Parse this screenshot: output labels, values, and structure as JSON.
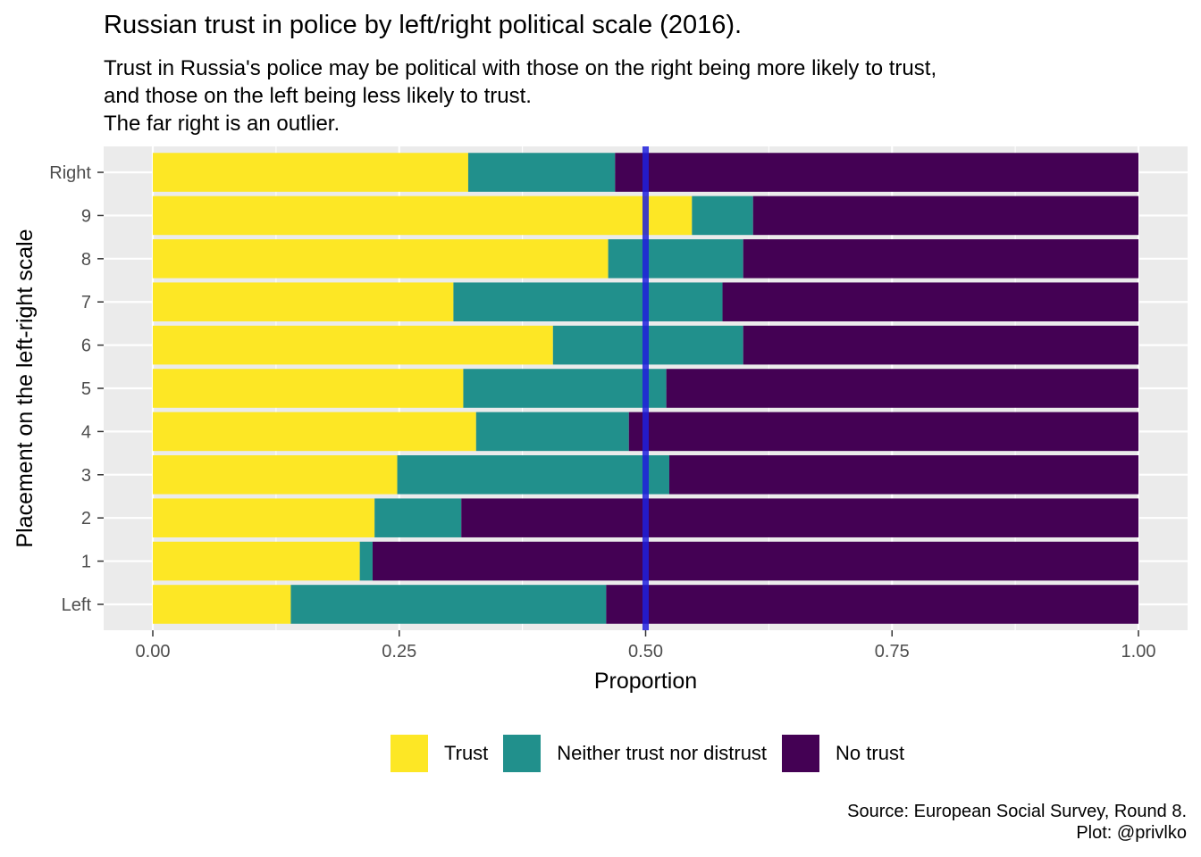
{
  "title": "Russian trust in police by left/right political scale (2016).",
  "subtitle_lines": [
    "Trust in Russia's police may be political with those on the right being more likely to trust,",
    "and those on the left being less likely to trust.",
    "The far right is an outlier."
  ],
  "caption_lines": [
    "Source: European Social Survey, Round 8.",
    "Plot: @privlko"
  ],
  "colors": {
    "trust": "#FDE725",
    "neither": "#21908C",
    "no_trust": "#440154",
    "reference_line": "#1E1EDC",
    "panel": "#EBEBEB",
    "grid": "#FFFFFF"
  },
  "chart_data": {
    "type": "bar",
    "orientation": "horizontal",
    "stacked": true,
    "xlabel": "Proportion",
    "ylabel": "Placement on the left-right scale",
    "xlim": [
      0,
      1
    ],
    "x_ticks": [
      "0.00",
      "0.25",
      "0.50",
      "0.75",
      "1.00"
    ],
    "x_tick_values": [
      0,
      0.25,
      0.5,
      0.75,
      1.0
    ],
    "categories": [
      "Left",
      "1",
      "2",
      "3",
      "4",
      "5",
      "6",
      "7",
      "8",
      "9",
      "Right"
    ],
    "series": [
      {
        "name": "Trust",
        "color": "#FDE725",
        "values": [
          0.14,
          0.21,
          0.225,
          0.248,
          0.328,
          0.315,
          0.406,
          0.305,
          0.462,
          0.547,
          0.32
        ]
      },
      {
        "name": "Neither trust nor distrust",
        "color": "#21908C",
        "values": [
          0.32,
          0.013,
          0.088,
          0.276,
          0.155,
          0.206,
          0.193,
          0.273,
          0.137,
          0.062,
          0.149
        ]
      },
      {
        "name": "No trust",
        "color": "#440154",
        "values": [
          0.54,
          0.777,
          0.687,
          0.476,
          0.517,
          0.479,
          0.401,
          0.422,
          0.401,
          0.391,
          0.531
        ]
      }
    ],
    "reference_line": {
      "x": 0.5
    },
    "legend_position": "bottom",
    "grid": true
  }
}
